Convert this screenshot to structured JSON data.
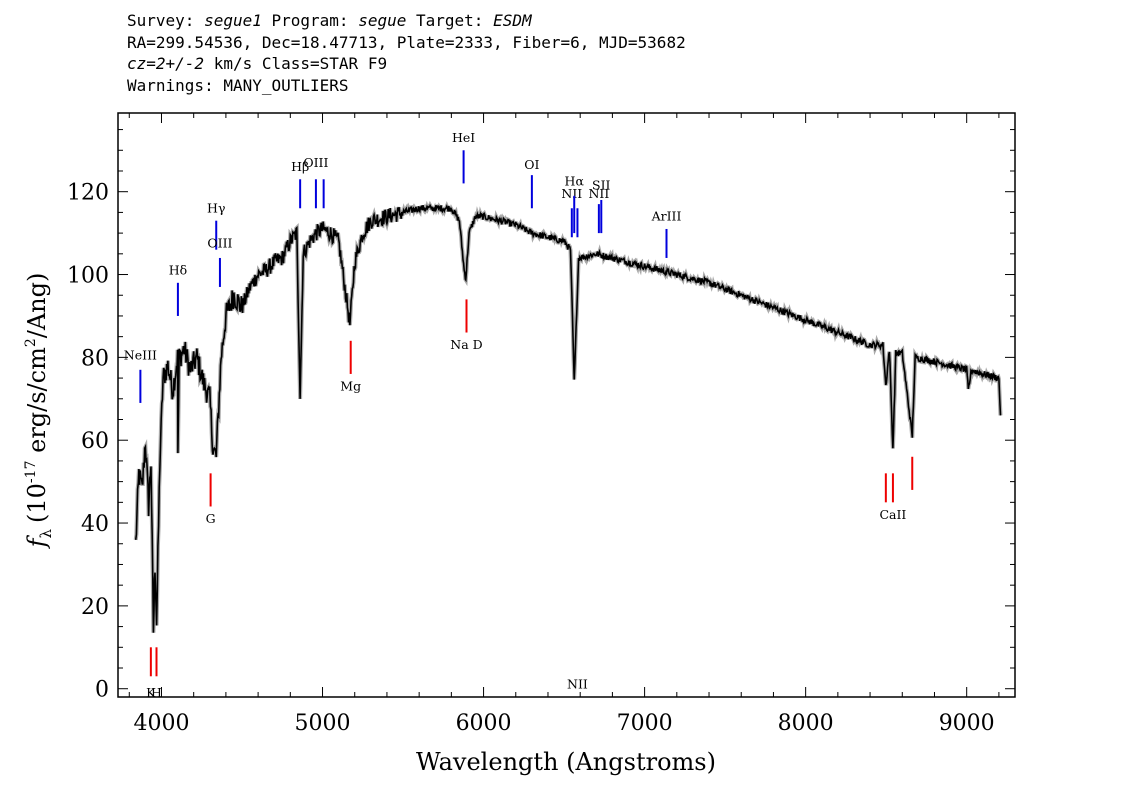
{
  "header": {
    "survey_label": "Survey: ",
    "survey": "segue1",
    "program_label": " Program: ",
    "program": "segue",
    "target_label": " Target: ",
    "target": "ESDM",
    "line2": "RA=299.54536, Dec=18.47713, Plate=2333, Fiber=6, MJD=53682",
    "cz": "cz=2+/-2",
    "cz_rest": " km/s Class=STAR F9",
    "line4": "Warnings: MANY_OUTLIERS"
  },
  "colors": {
    "emission": "#0000dd",
    "absorption": "#ee0000",
    "spectrum": "#000000",
    "error": "#aaaaaa"
  },
  "chart_data": {
    "type": "line",
    "xlabel": "Wavelength (Angstroms)",
    "ylabel": "f_λ (10^-17 erg/s/cm^2/Ang)",
    "ylabel_parts": {
      "f": "f",
      "sub": "λ",
      "pre": "(10",
      "exp1": "-17",
      "mid": " erg/s/cm",
      "exp2": "2",
      "post": "/Ang)"
    },
    "xlim": [
      3730,
      9300
    ],
    "ylim": [
      -2,
      139
    ],
    "x_ticks": [
      4000,
      5000,
      6000,
      7000,
      8000,
      9000
    ],
    "x_tick_labels": [
      "4000",
      "5000",
      "6000",
      "7000",
      "8000",
      "9000"
    ],
    "y_ticks": [
      0,
      20,
      40,
      60,
      80,
      100,
      120
    ],
    "y_tick_labels": [
      "0",
      "20",
      "40",
      "60",
      "80",
      "100",
      "120"
    ],
    "spectrum": [
      [
        3840,
        35
      ],
      [
        3860,
        52
      ],
      [
        3880,
        48
      ],
      [
        3900,
        60
      ],
      [
        3920,
        44
      ],
      [
        3935,
        55
      ],
      [
        3950,
        14
      ],
      [
        3960,
        30
      ],
      [
        3970,
        16
      ],
      [
        3990,
        55
      ],
      [
        4010,
        75
      ],
      [
        4040,
        78
      ],
      [
        4070,
        72
      ],
      [
        4100,
        80
      ],
      [
        4102,
        57
      ],
      [
        4110,
        80
      ],
      [
        4140,
        82
      ],
      [
        4180,
        77
      ],
      [
        4220,
        80
      ],
      [
        4260,
        74
      ],
      [
        4300,
        70
      ],
      [
        4320,
        58
      ],
      [
        4340,
        56
      ],
      [
        4370,
        80
      ],
      [
        4400,
        90
      ],
      [
        4450,
        95
      ],
      [
        4500,
        92
      ],
      [
        4550,
        97
      ],
      [
        4600,
        100
      ],
      [
        4650,
        101
      ],
      [
        4700,
        103
      ],
      [
        4750,
        104
      ],
      [
        4800,
        108
      ],
      [
        4840,
        110
      ],
      [
        4861,
        71
      ],
      [
        4880,
        105
      ],
      [
        4920,
        108
      ],
      [
        4960,
        110
      ],
      [
        5000,
        111
      ],
      [
        5050,
        110
      ],
      [
        5100,
        108
      ],
      [
        5170,
        88
      ],
      [
        5200,
        103
      ],
      [
        5250,
        110
      ],
      [
        5300,
        113
      ],
      [
        5400,
        114
      ],
      [
        5500,
        115
      ],
      [
        5600,
        116
      ],
      [
        5700,
        116
      ],
      [
        5800,
        116
      ],
      [
        5850,
        113
      ],
      [
        5880,
        101
      ],
      [
        5890,
        99
      ],
      [
        5910,
        110
      ],
      [
        5950,
        114
      ],
      [
        6000,
        114
      ],
      [
        6100,
        113
      ],
      [
        6200,
        112
      ],
      [
        6300,
        110
      ],
      [
        6400,
        109
      ],
      [
        6500,
        108
      ],
      [
        6540,
        106
      ],
      [
        6563,
        74
      ],
      [
        6590,
        104
      ],
      [
        6700,
        105
      ],
      [
        6800,
        104
      ],
      [
        6900,
        103
      ],
      [
        7000,
        102
      ],
      [
        7100,
        101
      ],
      [
        7200,
        100
      ],
      [
        7400,
        98
      ],
      [
        7600,
        95
      ],
      [
        7800,
        92
      ],
      [
        8000,
        89
      ],
      [
        8200,
        86
      ],
      [
        8400,
        83
      ],
      [
        8480,
        83
      ],
      [
        8498,
        73
      ],
      [
        8520,
        82
      ],
      [
        8542,
        58
      ],
      [
        8560,
        81
      ],
      [
        8600,
        81
      ],
      [
        8662,
        61
      ],
      [
        8680,
        80
      ],
      [
        8800,
        79
      ],
      [
        8900,
        78
      ],
      [
        9000,
        77
      ],
      [
        9010,
        72
      ],
      [
        9030,
        77
      ],
      [
        9100,
        76
      ],
      [
        9200,
        75
      ],
      [
        9210,
        66
      ]
    ],
    "emission_lines": [
      {
        "label": "NeIII",
        "wavelength": 3869,
        "y_range": [
          69,
          77
        ],
        "label_y": 79.5
      },
      {
        "label": "Hδ",
        "wavelength": 4102,
        "y_range": [
          90,
          98
        ],
        "label_y": 100
      },
      {
        "label": "Hγ",
        "wavelength": 4340,
        "y_range": [
          106,
          113
        ],
        "label_y": 115
      },
      {
        "label": "OIII",
        "wavelength": 4363,
        "y_range": [
          97,
          104
        ],
        "label_y": 106.5
      },
      {
        "label": "Hβ",
        "wavelength": 4861,
        "y_range": [
          116,
          123
        ],
        "label_y": 125
      },
      {
        "label": "OIII",
        "wavelength": 4959,
        "y_range": [
          116,
          123
        ],
        "label_y": 126
      },
      {
        "label": "",
        "wavelength": 5007,
        "y_range": [
          116,
          123
        ],
        "label_y": 0
      },
      {
        "label": "HeI",
        "wavelength": 5876,
        "y_range": [
          122,
          130
        ],
        "label_y": 132
      },
      {
        "label": "OI",
        "wavelength": 6300,
        "y_range": [
          116,
          124
        ],
        "label_y": 125.5
      },
      {
        "label": "NII",
        "wavelength": 6548,
        "y_range": [
          109,
          116
        ],
        "label_y": 118.5
      },
      {
        "label": "Hα",
        "wavelength": 6563,
        "y_range": [
          110,
          119
        ],
        "label_y": 121.5
      },
      {
        "label": "NII",
        "wavelength": 6583,
        "y_range": [
          109,
          116
        ],
        "label_y": 0
      },
      {
        "label": "NII",
        "wavelength": 6716,
        "y_range": [
          110,
          117
        ],
        "label_y": 118.5
      },
      {
        "label": "SII",
        "wavelength": 6731,
        "y_range": [
          110,
          118
        ],
        "label_y": 120.5
      },
      {
        "label": "ArIII",
        "wavelength": 7136,
        "y_range": [
          104,
          111
        ],
        "label_y": 113
      }
    ],
    "absorption_lines": [
      {
        "label": "K",
        "wavelength": 3934,
        "y_range": [
          3,
          10
        ],
        "label_y": -2
      },
      {
        "label": "H",
        "wavelength": 3969,
        "y_range": [
          3,
          10
        ],
        "label_y": -2
      },
      {
        "label": "G",
        "wavelength": 4305,
        "y_range": [
          44,
          52
        ],
        "label_y": 40
      },
      {
        "label": "Mg",
        "wavelength": 5175,
        "y_range": [
          76,
          84
        ],
        "label_y": 72
      },
      {
        "label": "Na D",
        "wavelength": 5894,
        "y_range": [
          86,
          94
        ],
        "label_y": 82
      },
      {
        "label": "",
        "wavelength": 8498,
        "y_range": [
          45,
          52
        ],
        "label_y": 0
      },
      {
        "label": "CaII",
        "wavelength": 8542,
        "y_range": [
          45,
          52
        ],
        "label_y": 41
      },
      {
        "label": "",
        "wavelength": 8662,
        "y_range": [
          48,
          56
        ],
        "label_y": 0
      }
    ]
  }
}
